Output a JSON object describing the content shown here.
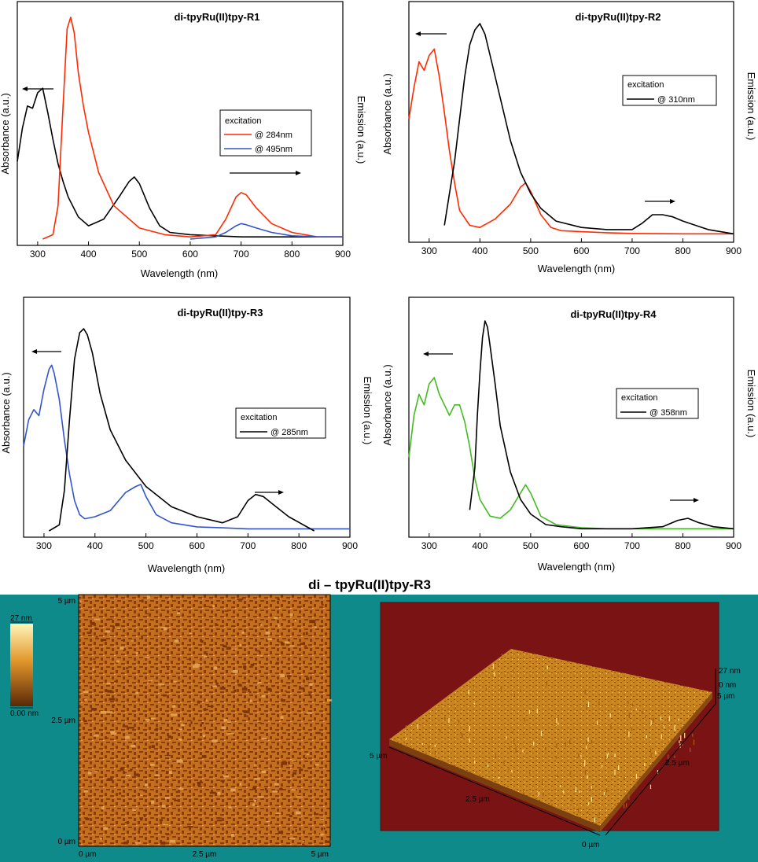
{
  "chart_data": [
    {
      "type": "line",
      "title": "di-tpyRu(II)tpy-R1",
      "xlabel": "Wavelength (nm)",
      "ylabel_left": "Absorbance (a.u.)",
      "ylabel_right": "Emission (a.u.)",
      "xlim": [
        260,
        900
      ],
      "xticks": [
        300,
        400,
        500,
        600,
        700,
        800,
        900
      ],
      "legend": {
        "title": "excitation",
        "entries": [
          "@ 284nm",
          "@ 495nm"
        ]
      },
      "series": [
        {
          "role": "absorbance",
          "color": "#000000",
          "x": [
            260,
            270,
            280,
            290,
            300,
            310,
            320,
            330,
            340,
            350,
            360,
            380,
            400,
            430,
            460,
            480,
            490,
            500,
            520,
            540,
            560,
            600,
            650,
            700,
            800,
            900
          ],
          "y": [
            0.35,
            0.5,
            0.6,
            0.59,
            0.66,
            0.68,
            0.57,
            0.45,
            0.34,
            0.26,
            0.19,
            0.1,
            0.06,
            0.09,
            0.19,
            0.26,
            0.28,
            0.25,
            0.14,
            0.06,
            0.03,
            0.02,
            0.015,
            0.01,
            0.01,
            0.01
          ]
        },
        {
          "role": "emission",
          "name": "@ 284nm",
          "color": "#ff2a00",
          "x": [
            310,
            330,
            340,
            350,
            358,
            365,
            372,
            380,
            390,
            400,
            420,
            450,
            500,
            550,
            600,
            650,
            670,
            690,
            700,
            710,
            730,
            760,
            800,
            850,
            900
          ],
          "y": [
            0.0,
            0.02,
            0.15,
            0.6,
            0.95,
            1.0,
            0.93,
            0.75,
            0.6,
            0.48,
            0.3,
            0.15,
            0.05,
            0.02,
            0.01,
            0.02,
            0.09,
            0.19,
            0.21,
            0.2,
            0.14,
            0.07,
            0.03,
            0.01,
            0.01
          ]
        },
        {
          "role": "emission",
          "name": "@ 495nm",
          "color": "#3355cc",
          "x": [
            600,
            650,
            670,
            690,
            700,
            710,
            730,
            760,
            800,
            850,
            900
          ],
          "y": [
            0.0,
            0.01,
            0.03,
            0.06,
            0.07,
            0.065,
            0.05,
            0.03,
            0.015,
            0.01,
            0.01
          ]
        }
      ]
    },
    {
      "type": "line",
      "title": "di-tpyRu(II)tpy-R2",
      "xlabel": "Wavelength (nm)",
      "ylabel_left": "Absorbance (a.u.)",
      "ylabel_right": "Emission (a.u.)",
      "xlim": [
        260,
        900
      ],
      "xticks": [
        300,
        400,
        500,
        600,
        700,
        800,
        900
      ],
      "legend": {
        "title": "excitation",
        "entries": [
          "@ 310nm"
        ]
      },
      "series": [
        {
          "role": "absorbance",
          "color": "#ff2a00",
          "x": [
            260,
            270,
            280,
            290,
            300,
            310,
            320,
            330,
            340,
            350,
            360,
            380,
            400,
            430,
            460,
            480,
            490,
            500,
            520,
            540,
            560,
            600,
            650,
            700,
            800,
            900
          ],
          "y": [
            0.55,
            0.7,
            0.82,
            0.78,
            0.85,
            0.88,
            0.75,
            0.58,
            0.4,
            0.25,
            0.12,
            0.05,
            0.04,
            0.08,
            0.15,
            0.23,
            0.25,
            0.21,
            0.1,
            0.04,
            0.025,
            0.02,
            0.015,
            0.012,
            0.01,
            0.01
          ]
        },
        {
          "role": "emission",
          "color": "#000000",
          "x": [
            330,
            340,
            350,
            360,
            370,
            380,
            390,
            400,
            410,
            420,
            440,
            460,
            480,
            500,
            520,
            550,
            600,
            650,
            700,
            720,
            740,
            760,
            780,
            800,
            850,
            900
          ],
          "y": [
            0.05,
            0.2,
            0.35,
            0.55,
            0.75,
            0.9,
            0.97,
            1.0,
            0.95,
            0.85,
            0.65,
            0.45,
            0.3,
            0.2,
            0.13,
            0.07,
            0.04,
            0.03,
            0.03,
            0.06,
            0.1,
            0.1,
            0.09,
            0.07,
            0.03,
            0.01
          ]
        }
      ]
    },
    {
      "type": "line",
      "title": "di-tpyRu(II)tpy-R3",
      "xlabel": "Wavelength (nm)",
      "ylabel_left": "Absorbance (a.u.)",
      "ylabel_right": "Emission (a.u.)",
      "xlim": [
        260,
        900
      ],
      "xticks": [
        300,
        400,
        500,
        600,
        700,
        800,
        900
      ],
      "legend": {
        "title": "excitation",
        "entries": [
          "@ 285nm"
        ]
      },
      "series": [
        {
          "role": "absorbance",
          "color": "#3355cc",
          "x": [
            260,
            270,
            280,
            290,
            300,
            310,
            315,
            320,
            330,
            340,
            350,
            360,
            370,
            380,
            400,
            430,
            460,
            480,
            490,
            500,
            520,
            550,
            600,
            650,
            700,
            800,
            900
          ],
          "y": [
            0.42,
            0.55,
            0.6,
            0.57,
            0.7,
            0.8,
            0.82,
            0.78,
            0.65,
            0.45,
            0.28,
            0.15,
            0.08,
            0.06,
            0.07,
            0.1,
            0.19,
            0.22,
            0.23,
            0.17,
            0.08,
            0.04,
            0.02,
            0.015,
            0.01,
            0.01,
            0.01
          ]
        },
        {
          "role": "emission",
          "color": "#000000",
          "x": [
            310,
            330,
            340,
            350,
            360,
            370,
            378,
            385,
            395,
            410,
            430,
            460,
            500,
            550,
            600,
            650,
            680,
            700,
            715,
            730,
            750,
            780,
            830
          ],
          "y": [
            0.0,
            0.03,
            0.2,
            0.55,
            0.85,
            0.98,
            1.0,
            0.97,
            0.88,
            0.68,
            0.5,
            0.35,
            0.22,
            0.12,
            0.07,
            0.04,
            0.07,
            0.15,
            0.18,
            0.17,
            0.13,
            0.07,
            0.0
          ]
        }
      ]
    },
    {
      "type": "line",
      "title": "di-tpyRu(II)tpy-R4",
      "xlabel": "Wavelength (nm)",
      "ylabel_left": "Absorbance (a.u.)",
      "ylabel_right": "Emission (a.u.)",
      "xlim": [
        260,
        900
      ],
      "xticks": [
        300,
        400,
        500,
        600,
        700,
        800,
        900
      ],
      "legend": {
        "title": "excitation",
        "entries": [
          "@ 358nm"
        ]
      },
      "series": [
        {
          "role": "absorbance",
          "color": "#44bb22",
          "x": [
            260,
            270,
            280,
            290,
            300,
            310,
            320,
            330,
            340,
            350,
            360,
            370,
            380,
            390,
            400,
            420,
            440,
            460,
            480,
            490,
            500,
            520,
            550,
            600,
            650,
            700,
            800,
            900
          ],
          "y": [
            0.35,
            0.55,
            0.65,
            0.6,
            0.7,
            0.73,
            0.65,
            0.6,
            0.55,
            0.6,
            0.6,
            0.52,
            0.4,
            0.25,
            0.15,
            0.07,
            0.06,
            0.1,
            0.18,
            0.22,
            0.18,
            0.07,
            0.03,
            0.015,
            0.01,
            0.01,
            0.01,
            0.01
          ]
        },
        {
          "role": "emission",
          "color": "#000000",
          "x": [
            380,
            390,
            395,
            400,
            405,
            410,
            415,
            420,
            430,
            440,
            460,
            480,
            500,
            530,
            560,
            600,
            650,
            700,
            760,
            790,
            810,
            830,
            860,
            900
          ],
          "y": [
            0.1,
            0.3,
            0.55,
            0.75,
            0.92,
            1.0,
            0.97,
            0.88,
            0.7,
            0.5,
            0.28,
            0.15,
            0.08,
            0.03,
            0.02,
            0.01,
            0.01,
            0.01,
            0.02,
            0.05,
            0.06,
            0.04,
            0.02,
            0.01
          ]
        }
      ]
    }
  ],
  "afm": {
    "title": "di – tpyRu(II)tpy-R3",
    "colors": {
      "background": "#0e8a8a",
      "surface": "#c06a18",
      "surface_dark": "#8a3c0a",
      "panel3d": "#7a1414"
    },
    "map2d": {
      "yticks": [
        "5 µm",
        "2.5 µm",
        "0 µm"
      ],
      "xticks": [
        "0 µm",
        "2.5 µm",
        "5 µm"
      ]
    },
    "colorbar": {
      "max": "27 nm",
      "min": "0.00 nm"
    },
    "map3d": {
      "z_top": "27 nm",
      "z_zero": "0 nm",
      "labels": [
        "5 µm",
        "2.5 µm",
        "0 µm",
        "5 µm",
        "2.5 µm"
      ]
    }
  }
}
